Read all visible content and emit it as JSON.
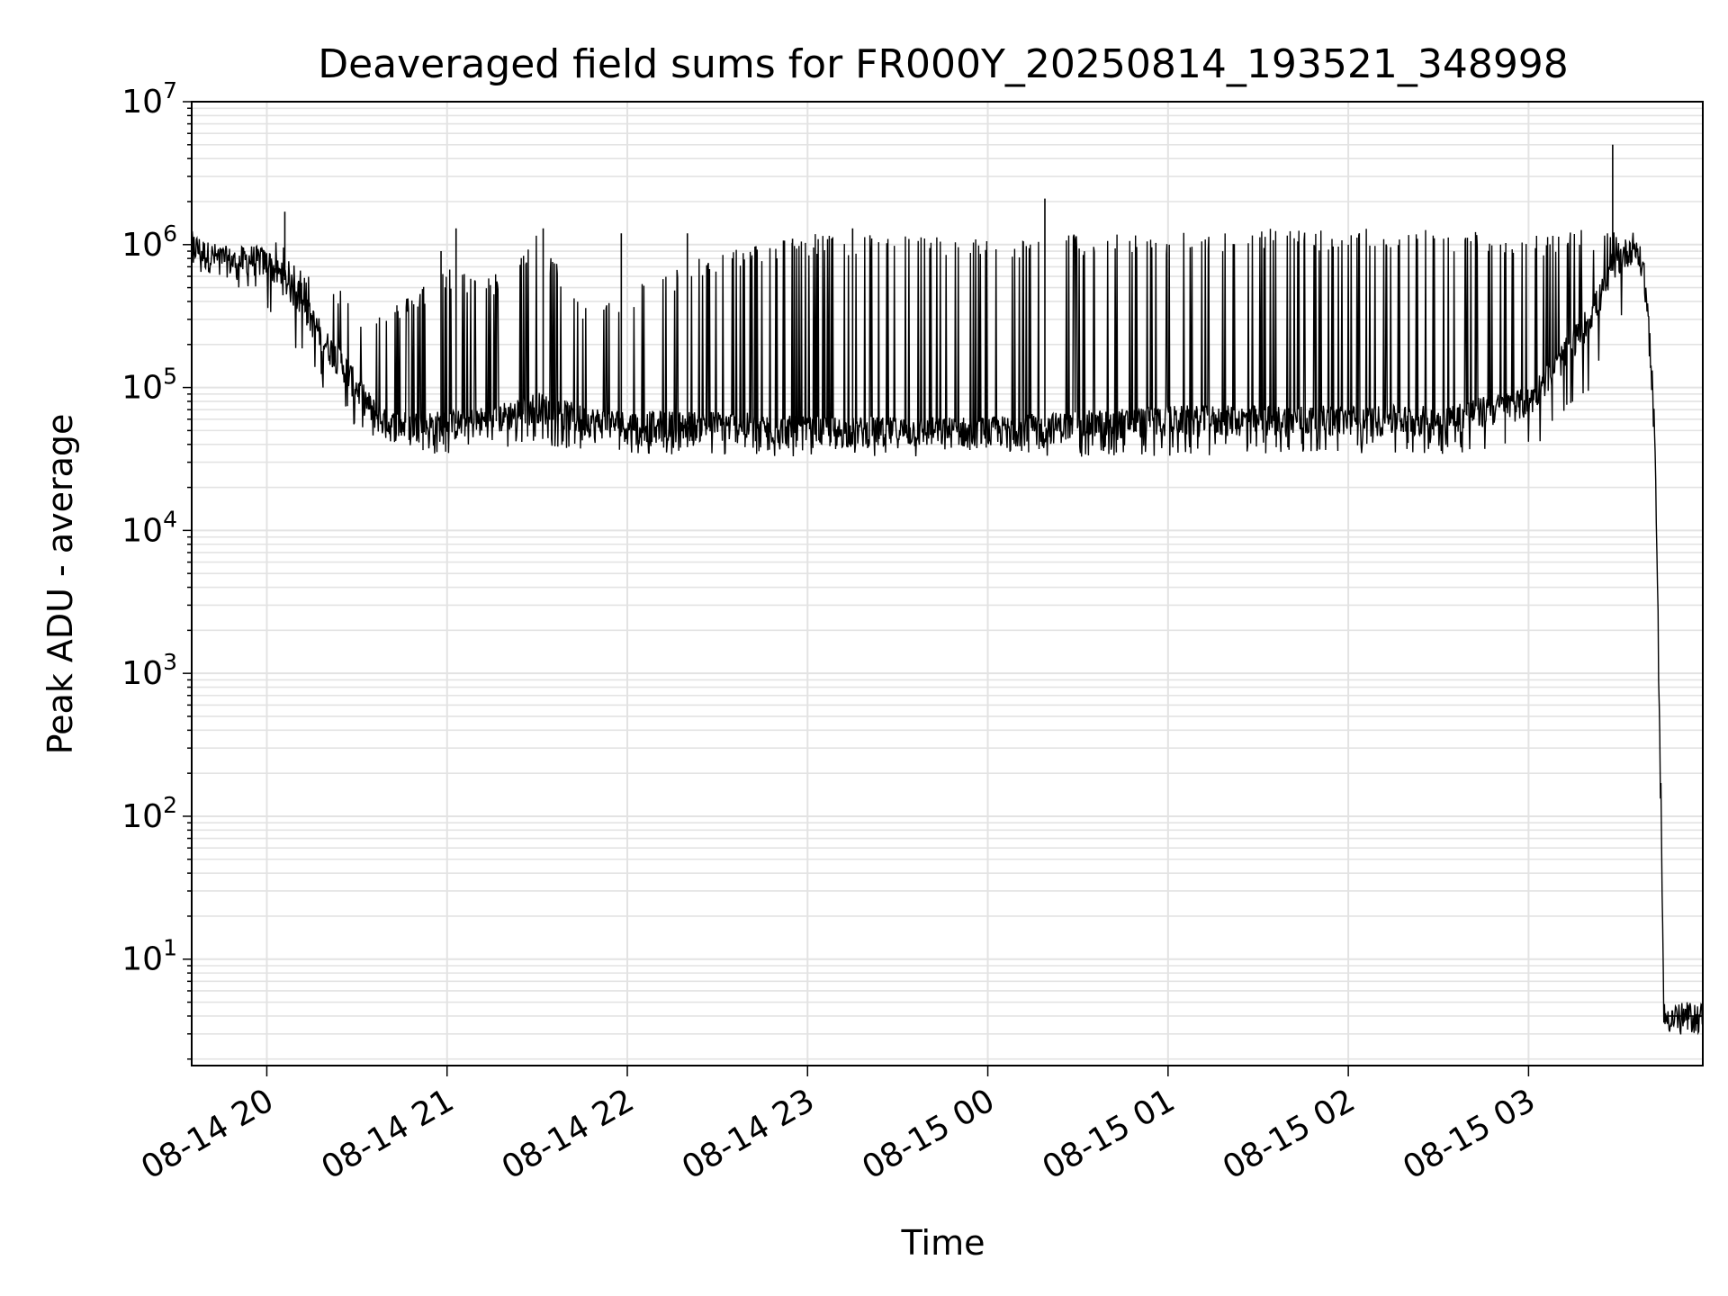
{
  "chart_data": {
    "type": "line",
    "title": "Deaveraged field sums for FR000Y_20250814_193521_348998",
    "xlabel": "Time",
    "ylabel": "Peak ADU - average",
    "yscale": "log",
    "ylim": [
      1.8,
      10000000
    ],
    "xlim": [
      "2025-08-14 19:35",
      "2025-08-15 03:58"
    ],
    "grid": "major and minor, light gray",
    "line_color": "#000000",
    "x_ticks": [
      "08-14 20",
      "08-14 21",
      "08-14 22",
      "08-14 23",
      "08-15 00",
      "08-15 01",
      "08-15 02",
      "08-15 03"
    ],
    "y_ticks": [
      {
        "base": "10",
        "exp": "1"
      },
      {
        "base": "10",
        "exp": "2"
      },
      {
        "base": "10",
        "exp": "3"
      },
      {
        "base": "10",
        "exp": "4"
      },
      {
        "base": "10",
        "exp": "5"
      },
      {
        "base": "10",
        "exp": "6"
      },
      {
        "base": "10",
        "exp": "7"
      }
    ],
    "series": [
      {
        "x": [
          "2025-08-14 19:35",
          "2025-08-14 19:40",
          "2025-08-14 19:45",
          "2025-08-14 19:50",
          "2025-08-14 19:55",
          "2025-08-14 20:00",
          "2025-08-14 20:05",
          "2025-08-14 20:10",
          "2025-08-14 20:15",
          "2025-08-14 20:20",
          "2025-08-14 20:25",
          "2025-08-14 20:30",
          "2025-08-14 20:35",
          "2025-08-14 20:40",
          "2025-08-14 20:45",
          "2025-08-14 20:50",
          "2025-08-14 21:00",
          "2025-08-14 21:15",
          "2025-08-14 21:30",
          "2025-08-14 21:45",
          "2025-08-14 22:00",
          "2025-08-14 22:30",
          "2025-08-14 23:00",
          "2025-08-14 23:30",
          "2025-08-15 00:00",
          "2025-08-15 00:30",
          "2025-08-15 01:00",
          "2025-08-15 01:30",
          "2025-08-15 02:00",
          "2025-08-15 02:30",
          "2025-08-15 03:00",
          "2025-08-15 03:10",
          "2025-08-15 03:20",
          "2025-08-15 03:30",
          "2025-08-15 03:35",
          "2025-08-15 03:38",
          "2025-08-15 03:40",
          "2025-08-15 03:42",
          "2025-08-15 03:43",
          "2025-08-15 03:44",
          "2025-08-15 03:45",
          "2025-08-15 03:50",
          "2025-08-15 03:58"
        ],
        "values": [
          1000000,
          850000,
          800000,
          750000,
          800000,
          750000,
          600000,
          450000,
          300000,
          200000,
          150000,
          100000,
          70000,
          55000,
          55000,
          55000,
          55000,
          60000,
          75000,
          60000,
          55000,
          55000,
          50000,
          50000,
          50000,
          55000,
          60000,
          60000,
          60000,
          60000,
          80000,
          150000,
          300000,
          800000,
          1000000,
          700000,
          300000,
          50000,
          3000,
          200,
          4,
          4,
          4
        ],
        "envelope_high": [
          1300000,
          1000000,
          950000,
          1000000,
          1000000,
          1100000,
          1000000,
          700000,
          800000,
          600000,
          500000,
          350000,
          300000,
          400000,
          400000,
          500000,
          700000,
          600000,
          1200000,
          400000,
          500000,
          900000,
          1200000,
          1200000,
          1100000,
          1200000,
          1200000,
          1300000,
          1300000,
          1300000,
          1200000,
          1200000,
          1300000,
          1200000,
          1200000,
          1000000,
          500000,
          60000,
          3000,
          200,
          4,
          4,
          4
        ],
        "envelope_low": [
          700000,
          650000,
          600000,
          550000,
          500000,
          400000,
          300000,
          200000,
          150000,
          100000,
          80000,
          55000,
          45000,
          40000,
          38000,
          38000,
          38000,
          40000,
          45000,
          40000,
          38000,
          36000,
          36000,
          36000,
          36000,
          36000,
          36000,
          38000,
          38000,
          38000,
          40000,
          60000,
          100000,
          300000,
          600000,
          500000,
          200000,
          40000,
          2000,
          100,
          4,
          4,
          4
        ],
        "spikes": [
          {
            "x": "2025-08-14 20:06",
            "y": 1700000
          },
          {
            "x": "2025-08-14 20:58",
            "y": 900000
          },
          {
            "x": "2025-08-14 21:03",
            "y": 1300000
          },
          {
            "x": "2025-08-14 21:32",
            "y": 1300000
          },
          {
            "x": "2025-08-14 21:58",
            "y": 1200000
          },
          {
            "x": "2025-08-14 22:20",
            "y": 1200000
          },
          {
            "x": "2025-08-14 22:55",
            "y": 1100000
          },
          {
            "x": "2025-08-14 23:15",
            "y": 1300000
          },
          {
            "x": "2025-08-15 00:19",
            "y": 2100000
          },
          {
            "x": "2025-08-15 03:28",
            "y": 5000000
          }
        ]
      }
    ]
  }
}
